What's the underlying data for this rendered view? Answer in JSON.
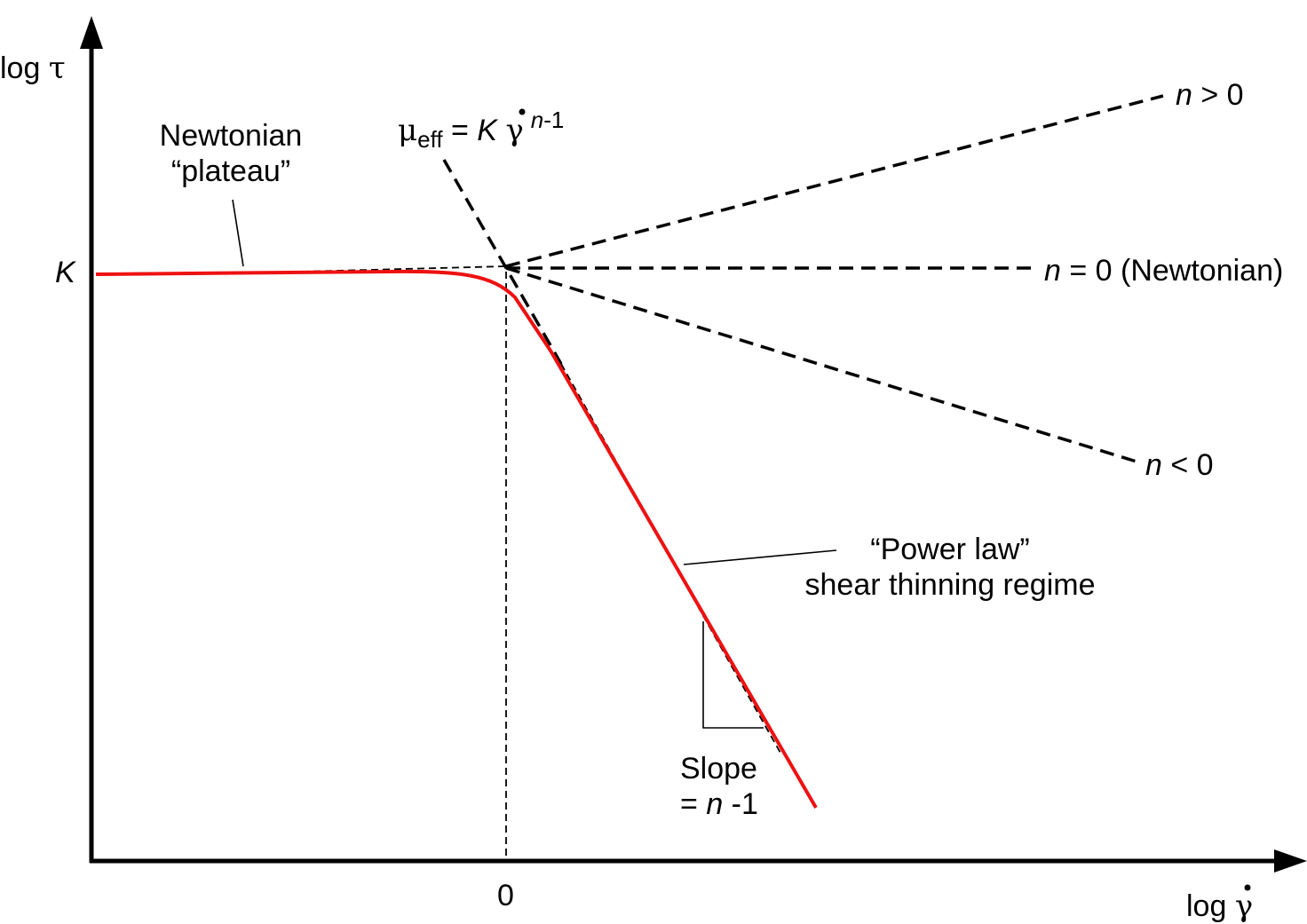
{
  "axes": {
    "y_label_prefix": "log",
    "y_label_symbol": "τ",
    "x_label_prefix": "log",
    "x_label_symbol": "γ",
    "x_tick_origin": "0",
    "y_tick_K": "K"
  },
  "labels": {
    "plateau_line1": "Newtonian",
    "plateau_line2": "“plateau”",
    "mu_symbol": "μ",
    "mu_sub": "eff",
    "mu_eq": " = ",
    "mu_K": "K",
    "mu_gamma": "γ",
    "mu_exp_n": "n",
    "mu_exp_rest": "-1",
    "n_gt_n": "n",
    "n_gt_rest": " > 0",
    "n_eq_n": "n",
    "n_eq_rest": " = 0 (Newtonian)",
    "n_lt_n": "n",
    "n_lt_rest": " < 0",
    "power_line1": "“Power law”",
    "power_line2": "shear thinning regime",
    "slope_line1": "Slope",
    "slope_eq": "= ",
    "slope_n": "n",
    "slope_rest": " -1"
  },
  "colors": {
    "curve": "#ee1111",
    "lines": "#000000"
  }
}
